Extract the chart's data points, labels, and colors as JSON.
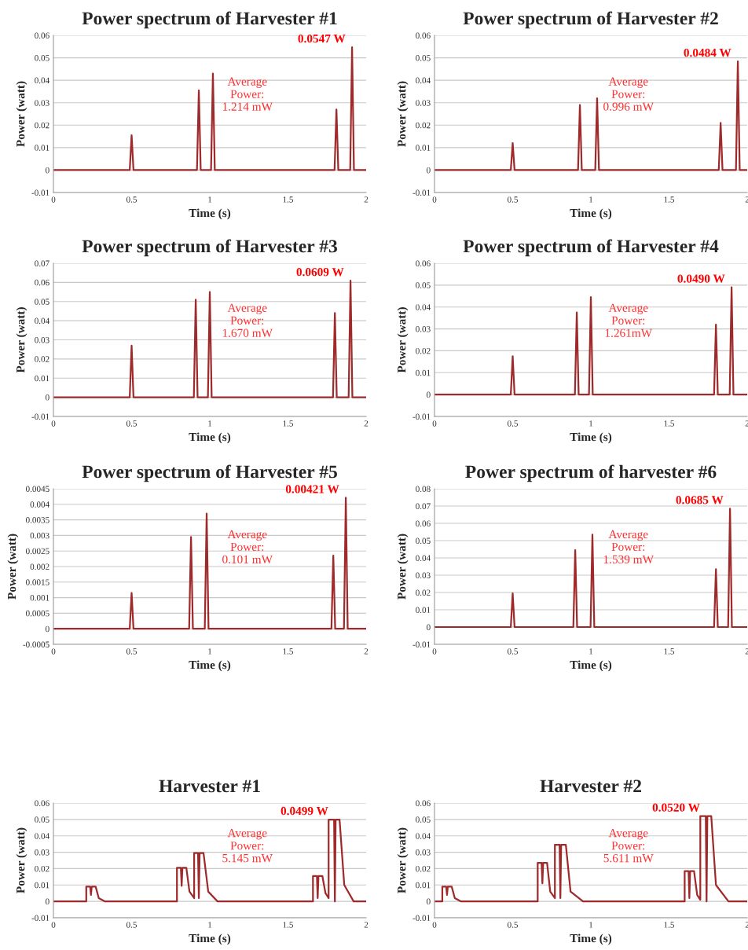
{
  "chart_data": [
    {
      "type": "line",
      "title": "Power spectrum of Harvester #1",
      "xlabel": "Time (s)",
      "ylabel": "Power (watt)",
      "grid": "y",
      "xlim": [
        0,
        2
      ],
      "xticks": [
        0,
        0.5,
        1,
        1.5,
        2
      ],
      "ylim": [
        -0.01,
        0.06
      ],
      "yticks": [
        -0.01,
        0,
        0.01,
        0.02,
        0.03,
        0.04,
        0.05,
        0.06
      ],
      "annotations": [
        {
          "text": "0.0547 W",
          "x": 1.91,
          "y": 0.0547
        },
        "Average\nPower:\n1.214 mW"
      ],
      "series": [
        {
          "color": "#9e2a2b",
          "x": [
            0,
            0.488,
            0.5,
            0.512,
            0.918,
            0.93,
            0.942,
            1.008,
            1.02,
            1.032,
            1.798,
            1.81,
            1.822,
            1.898,
            1.91,
            1.922,
            2
          ],
          "values": [
            0,
            0,
            0.0155,
            0,
            0,
            0.0355,
            0,
            0,
            0.043,
            0,
            0,
            0.027,
            0,
            0,
            0.0547,
            0,
            0
          ]
        }
      ]
    },
    {
      "type": "line",
      "title": "Power spectrum of Harvester #2",
      "xlabel": "Time (s)",
      "ylabel": "Power (watt)",
      "grid": "y",
      "xlim": [
        0,
        2
      ],
      "xticks": [
        0,
        0.5,
        1,
        1.5,
        2
      ],
      "ylim": [
        -0.01,
        0.06
      ],
      "yticks": [
        -0.01,
        0,
        0.01,
        0.02,
        0.03,
        0.04,
        0.05,
        0.06
      ],
      "annotations": [
        {
          "text": "0.0484 W",
          "x": 1.94,
          "y": 0.0484
        },
        "Average\nPower:\n0.996 mW"
      ],
      "series": [
        {
          "color": "#9e2a2b",
          "x": [
            0,
            0.488,
            0.5,
            0.512,
            0.918,
            0.93,
            0.942,
            1.028,
            1.04,
            1.052,
            1.818,
            1.83,
            1.842,
            1.928,
            1.94,
            1.952,
            2
          ],
          "values": [
            0,
            0,
            0.012,
            0,
            0,
            0.029,
            0,
            0,
            0.032,
            0,
            0,
            0.021,
            0,
            0,
            0.0484,
            0,
            0
          ]
        }
      ]
    },
    {
      "type": "line",
      "title": "Power spectrum of Harvester #3",
      "xlabel": "Time (s)",
      "ylabel": "Power (watt)",
      "grid": "y",
      "xlim": [
        0,
        2
      ],
      "xticks": [
        0,
        0.5,
        1,
        1.5,
        2
      ],
      "ylim": [
        -0.01,
        0.07
      ],
      "yticks": [
        -0.01,
        0,
        0.01,
        0.02,
        0.03,
        0.04,
        0.05,
        0.06,
        0.07
      ],
      "annotations": [
        {
          "text": "0.0609 W",
          "x": 1.9,
          "y": 0.0609
        },
        "Average\nPower:\n1.670 mW"
      ],
      "series": [
        {
          "color": "#9e2a2b",
          "x": [
            0,
            0.488,
            0.5,
            0.512,
            0.898,
            0.91,
            0.922,
            0.988,
            1.0,
            1.012,
            1.788,
            1.8,
            1.812,
            1.888,
            1.9,
            1.912,
            2
          ],
          "values": [
            0,
            0,
            0.027,
            0,
            0,
            0.051,
            0,
            0,
            0.055,
            0,
            0,
            0.044,
            0,
            0,
            0.0609,
            0,
            0
          ]
        }
      ]
    },
    {
      "type": "line",
      "title": "Power spectrum of Harvester #4",
      "xlabel": "Time (s)",
      "ylabel": "Power (watt)",
      "grid": "y",
      "xlim": [
        0,
        2
      ],
      "xticks": [
        0,
        0.5,
        1,
        1.5,
        2
      ],
      "ylim": [
        -0.01,
        0.06
      ],
      "yticks": [
        -0.01,
        0,
        0.01,
        0.02,
        0.03,
        0.04,
        0.05,
        0.06
      ],
      "annotations": [
        {
          "text": "0.0490 W",
          "x": 1.9,
          "y": 0.049
        },
        "Average\nPower:\n1.261mW"
      ],
      "series": [
        {
          "color": "#9e2a2b",
          "x": [
            0,
            0.488,
            0.5,
            0.512,
            0.898,
            0.91,
            0.922,
            0.988,
            1.0,
            1.012,
            1.788,
            1.8,
            1.812,
            1.888,
            1.9,
            1.912,
            2
          ],
          "values": [
            0,
            0,
            0.0175,
            0,
            0,
            0.0375,
            0,
            0,
            0.0445,
            0,
            0,
            0.032,
            0,
            0,
            0.049,
            0,
            0
          ]
        }
      ]
    },
    {
      "type": "line",
      "title": "Power spectrum of Harvester #5",
      "xlabel": "Time (s)",
      "ylabel": "Power (watt)",
      "grid": "y",
      "xlim": [
        0,
        2
      ],
      "xticks": [
        0,
        0.5,
        1,
        1.5,
        2
      ],
      "ylim": [
        -0.0005,
        0.0045
      ],
      "yticks": [
        -0.0005,
        0,
        0.0005,
        0.001,
        0.0015,
        0.002,
        0.0025,
        0.003,
        0.0035,
        0.004,
        0.0045
      ],
      "annotations": [
        {
          "text": "0.00421 W",
          "x": 1.87,
          "y": 0.00421
        },
        "Average\nPower:\n0.101 mW"
      ],
      "series": [
        {
          "color": "#9e2a2b",
          "x": [
            0,
            0.488,
            0.5,
            0.512,
            0.868,
            0.88,
            0.892,
            0.968,
            0.98,
            0.992,
            1.778,
            1.79,
            1.802,
            1.858,
            1.87,
            1.882,
            2
          ],
          "values": [
            0,
            0,
            0.00115,
            0,
            0,
            0.00295,
            0,
            0,
            0.0037,
            0,
            0,
            0.00235,
            0,
            0,
            0.00421,
            0,
            0
          ]
        }
      ]
    },
    {
      "type": "line",
      "title": "Power spectrum of harvester #6",
      "xlabel": "Time (s)",
      "ylabel": "Power (watt)",
      "grid": "y",
      "xlim": [
        0,
        2
      ],
      "xticks": [
        0,
        0.5,
        1,
        1.5,
        2
      ],
      "ylim": [
        -0.01,
        0.08
      ],
      "yticks": [
        -0.01,
        0,
        0.01,
        0.02,
        0.03,
        0.04,
        0.05,
        0.06,
        0.07,
        0.08
      ],
      "annotations": [
        {
          "text": "0.0685 W",
          "x": 1.89,
          "y": 0.0685
        },
        "Average\nPower:\n1.539 mW"
      ],
      "series": [
        {
          "color": "#9e2a2b",
          "x": [
            0,
            0.488,
            0.5,
            0.512,
            0.888,
            0.9,
            0.912,
            0.998,
            1.01,
            1.022,
            1.788,
            1.8,
            1.812,
            1.878,
            1.89,
            1.902,
            2
          ],
          "values": [
            0,
            0,
            0.0195,
            0,
            0,
            0.0445,
            0,
            0,
            0.0535,
            0,
            0,
            0.0335,
            0,
            0,
            0.0685,
            0,
            0
          ]
        }
      ]
    },
    {
      "type": "line",
      "title": "Harvester #1",
      "xlabel": "Time (s)",
      "ylabel": "Power (watt)",
      "grid": "y",
      "xlim": [
        0,
        2
      ],
      "xticks": [
        0,
        0.5,
        1,
        1.5,
        2
      ],
      "ylim": [
        -0.01,
        0.06
      ],
      "yticks": [
        -0.01,
        0,
        0.01,
        0.02,
        0.03,
        0.04,
        0.05,
        0.06
      ],
      "annotations": [
        {
          "text": "0.0499 W",
          "x": 1.8,
          "y": 0.0499
        },
        "Average\nPower:\n5.145 mW"
      ],
      "series": [
        {
          "color": "#9e2a2b",
          "x": [
            0,
            0.21,
            0.21,
            0.235,
            0.24,
            0.245,
            0.27,
            0.29,
            0.33,
            0.79,
            0.79,
            0.815,
            0.82,
            0.825,
            0.85,
            0.87,
            0.9,
            0.9,
            0.925,
            0.93,
            0.935,
            0.96,
            0.99,
            1.05,
            1.66,
            1.66,
            1.685,
            1.69,
            1.695,
            1.72,
            1.74,
            1.76,
            1.76,
            1.795,
            1.8,
            1.805,
            1.83,
            1.86,
            1.92,
            2
          ],
          "values": [
            0,
            0,
            0.009,
            0.009,
            0.004,
            0.009,
            0.009,
            0.002,
            0,
            0,
            0.0205,
            0.0205,
            0.0095,
            0.0205,
            0.0205,
            0.006,
            0.002,
            0.0295,
            0.0295,
            0.002,
            0.0295,
            0.0295,
            0.006,
            0,
            0,
            0.0155,
            0.0155,
            0.002,
            0.0155,
            0.0155,
            0.005,
            0.002,
            0.0499,
            0.0499,
            0,
            0.0499,
            0.0499,
            0.01,
            0,
            0
          ]
        }
      ]
    },
    {
      "type": "line",
      "title": "Harvester #2",
      "xlabel": "Time (s)",
      "ylabel": "Power (watt)",
      "grid": "y",
      "xlim": [
        0,
        2
      ],
      "xticks": [
        0,
        0.5,
        1,
        1.5,
        2
      ],
      "ylim": [
        -0.01,
        0.06
      ],
      "yticks": [
        -0.01,
        0,
        0.01,
        0.02,
        0.03,
        0.04,
        0.05,
        0.06
      ],
      "annotations": [
        {
          "text": "0.0520 W",
          "x": 1.74,
          "y": 0.052
        },
        "Average\nPower:\n5.611 mW"
      ],
      "series": [
        {
          "color": "#9e2a2b",
          "x": [
            0,
            0.05,
            0.05,
            0.075,
            0.08,
            0.085,
            0.11,
            0.13,
            0.17,
            0.66,
            0.66,
            0.685,
            0.69,
            0.695,
            0.72,
            0.74,
            0.77,
            0.77,
            0.8,
            0.805,
            0.81,
            0.84,
            0.87,
            0.95,
            1.6,
            1.6,
            1.625,
            1.63,
            1.635,
            1.66,
            1.68,
            1.7,
            1.7,
            1.735,
            1.74,
            1.745,
            1.77,
            1.8,
            1.88,
            2
          ],
          "values": [
            0,
            0,
            0.009,
            0.009,
            0.004,
            0.009,
            0.009,
            0.002,
            0,
            0,
            0.0235,
            0.0235,
            0.011,
            0.0235,
            0.0235,
            0.006,
            0.002,
            0.0345,
            0.0345,
            0.002,
            0.0345,
            0.0345,
            0.006,
            0,
            0,
            0.0185,
            0.0185,
            0.002,
            0.0185,
            0.0185,
            0.004,
            0.001,
            0.052,
            0.052,
            0,
            0.052,
            0.052,
            0.01,
            0,
            0
          ]
        }
      ]
    }
  ]
}
